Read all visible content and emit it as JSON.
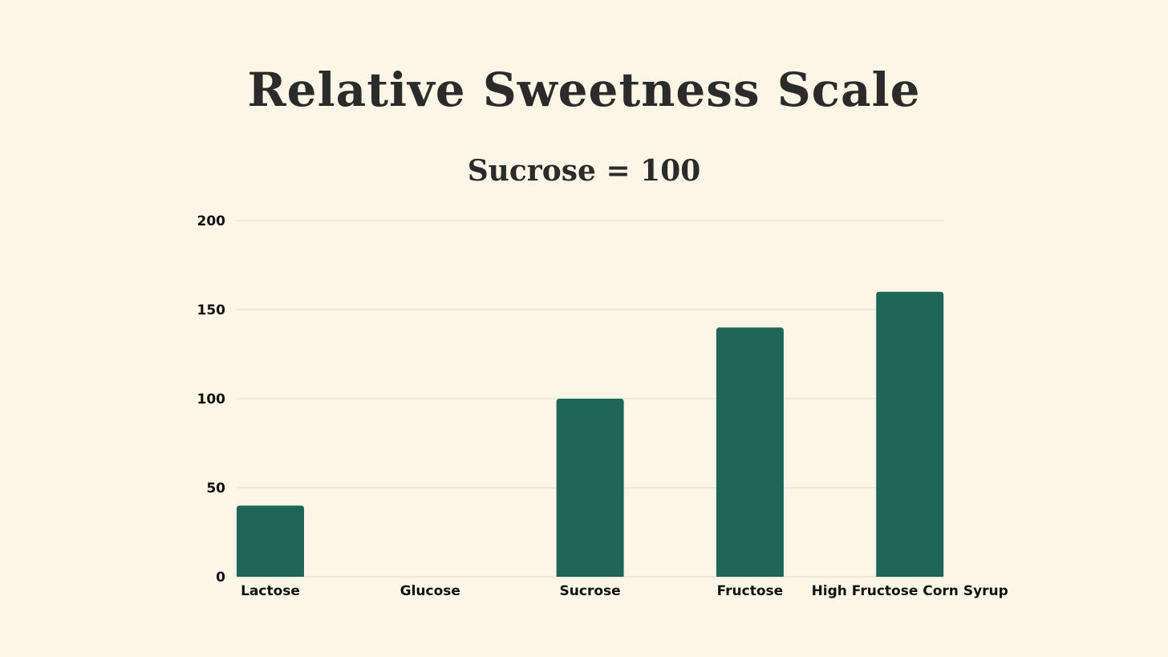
{
  "chart_data": {
    "type": "bar",
    "title": "Relative Sweetness Scale",
    "subtitle": "Sucrose = 100",
    "categories": [
      "Lactose",
      "Glucose",
      "Sucrose",
      "Fructose",
      "High Fructose Corn Syrup"
    ],
    "values": [
      40,
      0,
      100,
      140,
      160
    ],
    "ylim": [
      0,
      200
    ],
    "yticks": [
      "0",
      "50",
      "100",
      "150",
      "200"
    ],
    "xlabel": "",
    "ylabel": "",
    "grid": true,
    "bar_color": "#1e6658",
    "grid_color": "#e0dccf"
  }
}
